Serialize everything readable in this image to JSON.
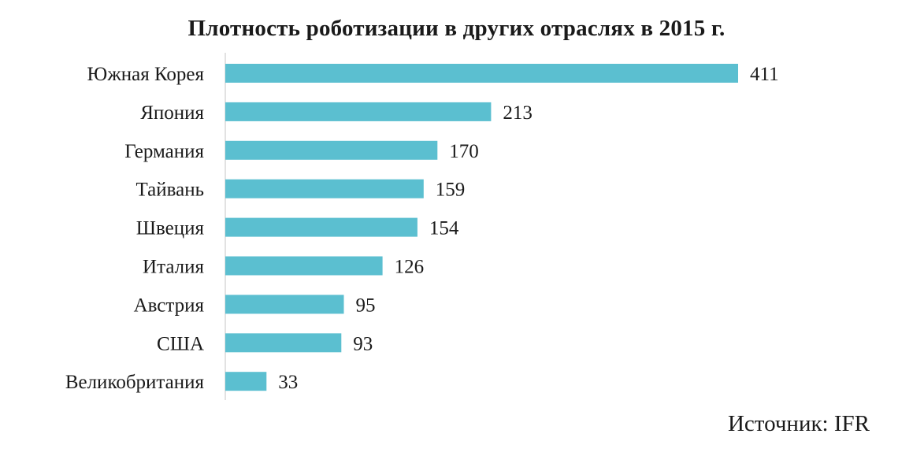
{
  "chart_data": {
    "type": "bar",
    "orientation": "horizontal",
    "title": "Плотность роботизации в других отраслях в 2015 г.",
    "categories": [
      "Южная Корея",
      "Япония",
      "Германия",
      "Тайвань",
      "Швеция",
      "Италия",
      "Австрия",
      "США",
      "Великобритания"
    ],
    "values": [
      411,
      213,
      170,
      159,
      154,
      126,
      95,
      93,
      33
    ],
    "value_labels": [
      "411",
      "213",
      "170",
      "159",
      "154",
      "126",
      "95",
      "93",
      "33"
    ],
    "xlim": [
      0,
      411
    ],
    "grid": false,
    "legend": "none",
    "colors": {
      "bar": "#5bbfd0",
      "axis": "#d9d9d9",
      "text": "#1a1a1a"
    }
  },
  "source_text": "Источник: IFR"
}
